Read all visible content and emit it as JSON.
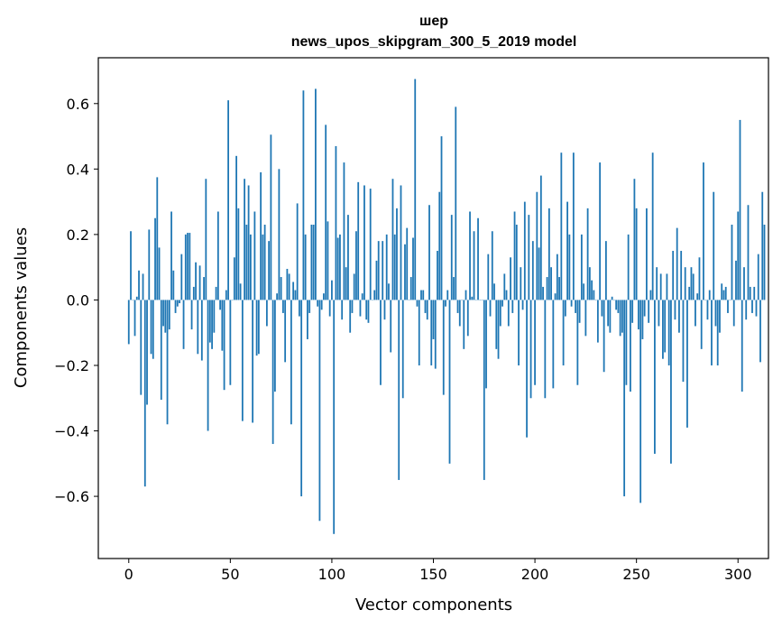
{
  "chart_data": {
    "type": "bar",
    "title": "шер",
    "subtitle": "news_upos_skipgram_300_5_2019 model",
    "xlabel": "Vector components",
    "ylabel": "Components values",
    "xlim": [
      -15,
      315
    ],
    "ylim": [
      -0.79,
      0.74
    ],
    "xticks": [
      0,
      50,
      100,
      150,
      200,
      250,
      300
    ],
    "xtick_labels": [
      "0",
      "50",
      "100",
      "150",
      "200",
      "250",
      "300"
    ],
    "yticks": [
      -0.6,
      -0.4,
      -0.2,
      0.0,
      0.2,
      0.4,
      0.6
    ],
    "ytick_labels": [
      "−0.6",
      "−0.4",
      "−0.2",
      "0.0",
      "0.2",
      "0.4",
      "0.6"
    ],
    "grid": false,
    "bar_color": "#1f77b4",
    "x_start": 0,
    "values": [
      -0.135,
      0.21,
      0.0,
      -0.11,
      0.01,
      0.09,
      -0.29,
      0.08,
      -0.57,
      -0.32,
      0.215,
      -0.165,
      -0.18,
      0.25,
      0.375,
      0.16,
      -0.305,
      -0.08,
      -0.1,
      -0.38,
      -0.09,
      0.27,
      0.09,
      -0.04,
      -0.02,
      -0.01,
      0.14,
      -0.15,
      0.2,
      0.205,
      0.205,
      -0.09,
      0.04,
      0.115,
      -0.165,
      0.105,
      -0.185,
      0.07,
      0.37,
      -0.4,
      -0.13,
      -0.15,
      -0.1,
      0.04,
      0.27,
      -0.03,
      -0.155,
      -0.275,
      0.03,
      0.61,
      -0.26,
      0.0,
      0.13,
      0.44,
      0.28,
      0.05,
      -0.37,
      0.37,
      0.23,
      0.35,
      0.2,
      -0.375,
      0.27,
      -0.17,
      -0.165,
      0.39,
      0.2,
      0.23,
      -0.08,
      0.18,
      0.505,
      -0.44,
      -0.28,
      0.02,
      0.4,
      0.07,
      -0.04,
      -0.19,
      0.095,
      0.08,
      -0.38,
      0.055,
      0.03,
      0.295,
      -0.05,
      -0.6,
      0.64,
      0.2,
      -0.12,
      -0.04,
      0.23,
      0.23,
      0.645,
      -0.02,
      -0.675,
      -0.03,
      0.02,
      0.535,
      0.24,
      -0.05,
      0.06,
      -0.715,
      0.47,
      0.19,
      0.2,
      -0.06,
      0.42,
      0.1,
      0.26,
      -0.1,
      -0.04,
      0.08,
      0.21,
      0.36,
      -0.05,
      0.02,
      0.35,
      -0.06,
      -0.07,
      0.34,
      0.0,
      0.03,
      0.12,
      0.18,
      -0.26,
      0.18,
      -0.06,
      0.2,
      0.05,
      -0.16,
      0.37,
      0.2,
      0.28,
      -0.55,
      0.35,
      -0.3,
      0.17,
      0.22,
      0.0,
      0.07,
      0.19,
      0.675,
      -0.02,
      -0.2,
      0.03,
      0.03,
      -0.04,
      -0.06,
      0.29,
      -0.2,
      -0.12,
      -0.21,
      0.15,
      0.33,
      0.5,
      -0.29,
      -0.02,
      0.03,
      -0.5,
      0.26,
      0.07,
      0.59,
      -0.04,
      -0.08,
      0.0,
      -0.15,
      0.03,
      -0.11,
      0.27,
      0.01,
      0.21,
      0.0,
      0.25,
      0.0,
      0.0,
      -0.55,
      -0.27,
      0.14,
      -0.05,
      0.21,
      0.05,
      -0.15,
      -0.18,
      -0.08,
      -0.02,
      0.08,
      0.03,
      -0.08,
      0.13,
      -0.04,
      0.27,
      0.23,
      -0.2,
      0.1,
      -0.03,
      0.3,
      -0.42,
      0.26,
      -0.3,
      0.18,
      -0.26,
      0.33,
      0.16,
      0.38,
      0.04,
      -0.3,
      0.07,
      0.28,
      0.1,
      -0.27,
      0.02,
      0.14,
      0.07,
      0.45,
      -0.2,
      -0.05,
      0.3,
      0.2,
      -0.02,
      0.45,
      -0.04,
      -0.26,
      -0.07,
      0.2,
      0.05,
      -0.11,
      0.28,
      0.1,
      0.06,
      0.03,
      0.0,
      -0.13,
      0.42,
      -0.05,
      -0.22,
      0.18,
      -0.08,
      -0.1,
      0.01,
      0.0,
      -0.03,
      -0.04,
      -0.11,
      -0.1,
      -0.6,
      -0.26,
      0.2,
      -0.28,
      -0.07,
      0.37,
      0.28,
      -0.09,
      -0.62,
      -0.12,
      -0.05,
      0.28,
      -0.07,
      0.03,
      0.45,
      -0.47,
      0.1,
      -0.08,
      0.08,
      -0.18,
      -0.16,
      0.08,
      -0.2,
      -0.5,
      0.15,
      -0.06,
      0.22,
      -0.1,
      0.15,
      -0.25,
      0.1,
      -0.39,
      0.04,
      0.1,
      0.08,
      -0.08,
      0.02,
      0.13,
      -0.15,
      0.42,
      0.0,
      -0.06,
      0.03,
      -0.2,
      0.33,
      -0.08,
      -0.2,
      -0.1,
      0.05,
      0.03,
      0.04,
      -0.04,
      0.0,
      0.23,
      -0.08,
      0.12,
      0.27,
      0.55,
      -0.28,
      0.1,
      -0.06,
      0.29,
      0.04,
      -0.04,
      0.04,
      -0.05,
      0.14,
      -0.19,
      0.33,
      0.23
    ]
  }
}
